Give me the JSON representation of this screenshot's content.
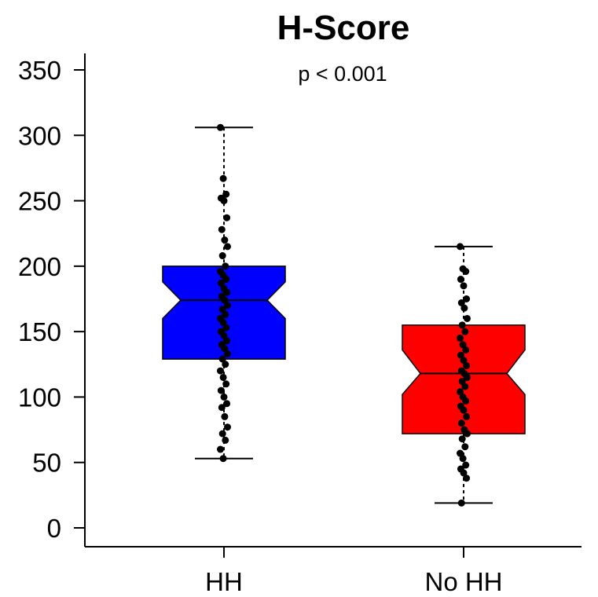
{
  "chart_data": {
    "type": "boxplot",
    "title": "H-Score",
    "annotation": "p < 0.001",
    "xlabel": "",
    "ylabel": "",
    "ylim": [
      -15,
      365
    ],
    "yticks": [
      0,
      50,
      100,
      150,
      200,
      250,
      300,
      350
    ],
    "categories": [
      "HH",
      "No HH"
    ],
    "notched": true,
    "grid": false,
    "boxes": [
      {
        "category": "HH",
        "color": "#0000ff",
        "whisker_low": 53,
        "q1": 129,
        "median": 174,
        "q3": 200,
        "whisker_high": 306,
        "notch_low": 160,
        "notch_high": 188,
        "points": [
          306,
          267,
          255,
          252,
          250,
          237,
          228,
          220,
          215,
          208,
          200,
          196,
          193,
          190,
          187,
          183,
          180,
          177,
          174,
          170,
          167,
          163,
          160,
          157,
          153,
          150,
          147,
          143,
          140,
          137,
          133,
          129,
          125,
          120,
          115,
          110,
          105,
          100,
          95,
          92,
          85,
          77,
          72,
          67,
          60,
          53
        ]
      },
      {
        "category": "No HH",
        "color": "#ff0000",
        "whisker_low": 19,
        "q1": 72,
        "median": 118,
        "q3": 155,
        "whisker_high": 215,
        "notch_low": 102,
        "notch_high": 136,
        "points": [
          215,
          198,
          196,
          190,
          185,
          175,
          172,
          168,
          160,
          155,
          150,
          145,
          140,
          136,
          132,
          128,
          124,
          120,
          118,
          115,
          112,
          108,
          104,
          100,
          97,
          93,
          90,
          85,
          80,
          75,
          72,
          68,
          62,
          57,
          53,
          48,
          45,
          42,
          38,
          19
        ]
      }
    ]
  }
}
